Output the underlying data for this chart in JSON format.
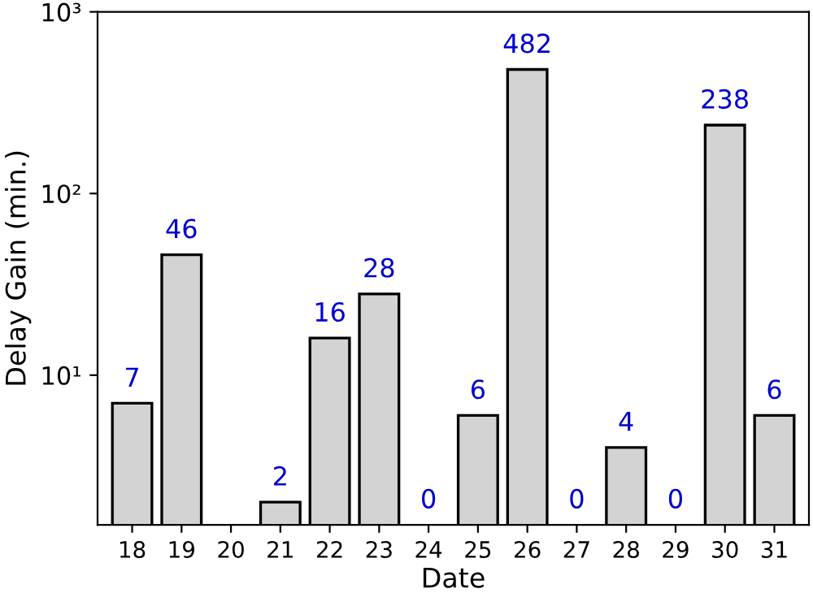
{
  "chart_data": {
    "type": "bar",
    "xlabel": "Date",
    "ylabel": "Delay Gain (min.)",
    "categories": [
      "18",
      "19",
      "20",
      "21",
      "22",
      "23",
      "24",
      "25",
      "26",
      "27",
      "28",
      "29",
      "30",
      "31"
    ],
    "values": [
      7,
      46,
      null,
      2,
      16,
      28,
      null,
      6,
      482,
      null,
      4,
      null,
      238,
      6
    ],
    "value_labels": [
      "7",
      "46",
      null,
      "2",
      "16",
      "28",
      "0",
      "6",
      "482",
      "0",
      "4",
      "0",
      "238",
      "6"
    ],
    "color": "#d3d3d3",
    "log": true,
    "ylim": [
      1.5,
      1000
    ],
    "yticks": [
      {
        "value": 10,
        "label": "10¹"
      },
      {
        "value": 100,
        "label": "10²"
      },
      {
        "value": 1000,
        "label": "10³"
      }
    ],
    "grid": false
  }
}
